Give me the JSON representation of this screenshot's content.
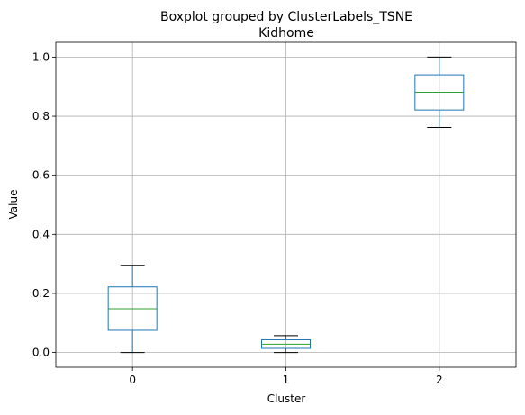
{
  "chart_data": {
    "type": "box",
    "suptitle": "Boxplot grouped by ClusterLabels_TSNE",
    "title": "Kidhome",
    "xlabel": "Cluster",
    "ylabel": "Value",
    "ylim": [
      -0.05,
      1.05
    ],
    "yticks": [
      "0.0",
      "0.2",
      "0.4",
      "0.6",
      "0.8",
      "1.0"
    ],
    "grid": true,
    "categories": [
      "0",
      "1",
      "2"
    ],
    "boxes": [
      {
        "category": "0",
        "whisker_low": 0.0,
        "q1": 0.075,
        "median": 0.148,
        "q3": 0.222,
        "whisker_high": 0.295
      },
      {
        "category": "1",
        "whisker_low": 0.0,
        "q1": 0.014,
        "median": 0.028,
        "q3": 0.043,
        "whisker_high": 0.057
      },
      {
        "category": "2",
        "whisker_low": 0.762,
        "q1": 0.821,
        "median": 0.881,
        "q3": 0.94,
        "whisker_high": 1.0
      }
    ],
    "colors": {
      "box": "#1f77b4",
      "median": "#2ca02c",
      "whisker": "#1f77b4",
      "cap": "#000000",
      "grid": "#b0b0b0"
    }
  }
}
